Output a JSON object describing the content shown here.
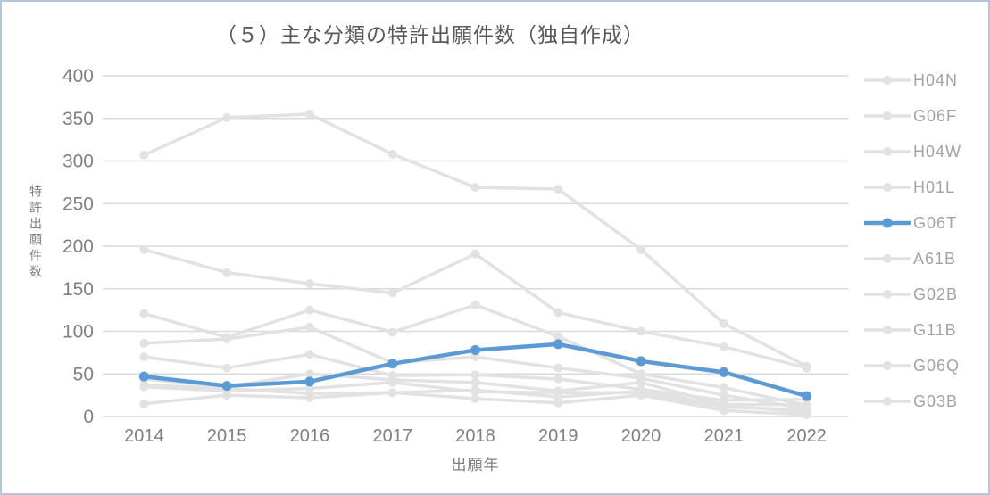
{
  "chart_data": {
    "type": "line",
    "title": "（５）主な分類の特許出願件数（独自作成）",
    "xlabel": "出願年",
    "ylabel": "特許出願件数",
    "x": [
      2014,
      2015,
      2016,
      2017,
      2018,
      2019,
      2020,
      2021,
      2022
    ],
    "ylim": [
      0,
      400
    ],
    "ytick_step": 50,
    "grid": true,
    "legend_position": "right",
    "series": [
      {
        "name": "H04N",
        "color": "#e2e2e2",
        "highlight": false,
        "values": [
          307,
          351,
          355,
          308,
          269,
          267,
          196,
          109,
          59
        ]
      },
      {
        "name": "G06F",
        "color": "#e2e2e2",
        "highlight": false,
        "values": [
          196,
          169,
          156,
          145,
          191,
          122,
          100,
          82,
          57
        ]
      },
      {
        "name": "H04W",
        "color": "#e2e2e2",
        "highlight": false,
        "values": [
          121,
          93,
          125,
          99,
          131,
          94,
          50,
          34,
          13
        ]
      },
      {
        "name": "H01L",
        "color": "#e2e2e2",
        "highlight": false,
        "values": [
          86,
          91,
          105,
          63,
          70,
          57,
          45,
          25,
          9
        ]
      },
      {
        "name": "G06T",
        "color": "#5b9bd5",
        "highlight": true,
        "values": [
          47,
          36,
          41,
          62,
          78,
          85,
          65,
          52,
          24
        ]
      },
      {
        "name": "A61B",
        "color": "#e2e2e2",
        "highlight": false,
        "values": [
          70,
          57,
          73,
          48,
          49,
          44,
          32,
          19,
          20
        ]
      },
      {
        "name": "G02B",
        "color": "#e2e2e2",
        "highlight": false,
        "values": [
          44,
          35,
          50,
          43,
          40,
          30,
          40,
          14,
          14
        ]
      },
      {
        "name": "G11B",
        "color": "#e2e2e2",
        "highlight": false,
        "values": [
          37,
          33,
          27,
          28,
          31,
          23,
          30,
          13,
          5
        ]
      },
      {
        "name": "G06Q",
        "color": "#e2e2e2",
        "highlight": false,
        "values": [
          35,
          30,
          33,
          40,
          29,
          28,
          28,
          11,
          8
        ]
      },
      {
        "name": "G03B",
        "color": "#e2e2e2",
        "highlight": false,
        "values": [
          15,
          25,
          22,
          28,
          21,
          16,
          25,
          7,
          2
        ]
      }
    ]
  },
  "colors": {
    "accent_blue": "#5b9bd5",
    "series_gray": "#e2e2e2",
    "gridline": "#d9d9d9",
    "axis_text": "#808080",
    "legend_text": "#a3a3a3",
    "title_text": "#595959",
    "frame_border": "#b4c7da",
    "background": "#ffffff"
  }
}
